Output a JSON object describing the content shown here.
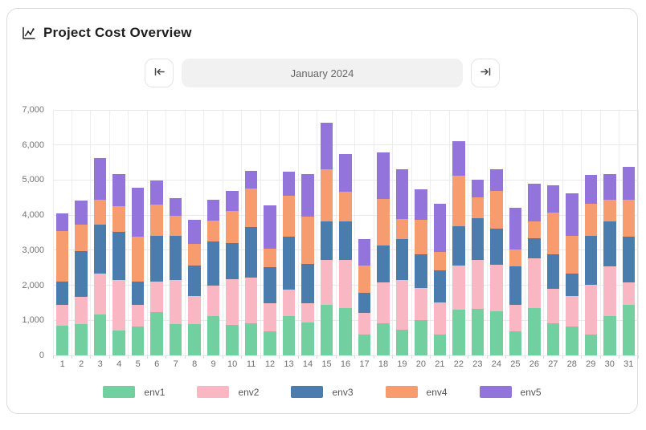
{
  "header": {
    "title": "Project Cost Overview",
    "icon": "chart-line-icon"
  },
  "nav": {
    "prev_icon": "skip-to-start-arrow-icon",
    "next_icon": "skip-to-end-arrow-icon",
    "date_label": "January 2024"
  },
  "chart_data": {
    "type": "bar",
    "stacked": true,
    "title": "Project Cost Overview",
    "xlabel": "",
    "ylabel": "",
    "grid": true,
    "legend_position": "bottom",
    "ylim": [
      0,
      7000
    ],
    "yticks": [
      {
        "value": 0,
        "label": "0"
      },
      {
        "value": 1000,
        "label": "1,000"
      },
      {
        "value": 2000,
        "label": "2,000"
      },
      {
        "value": 3000,
        "label": "3,000"
      },
      {
        "value": 4000,
        "label": "4,000"
      },
      {
        "value": 5000,
        "label": "5,000"
      },
      {
        "value": 6000,
        "label": "6,000"
      },
      {
        "value": 7000,
        "label": "7,000"
      }
    ],
    "categories": [
      "1",
      "2",
      "3",
      "4",
      "5",
      "6",
      "7",
      "8",
      "9",
      "10",
      "11",
      "12",
      "13",
      "14",
      "15",
      "16",
      "17",
      "18",
      "19",
      "20",
      "21",
      "22",
      "23",
      "24",
      "25",
      "26",
      "27",
      "28",
      "29",
      "30",
      "31"
    ],
    "series": [
      {
        "name": "env1",
        "color": "#72CFA0",
        "values": [
          850,
          900,
          1170,
          700,
          820,
          1240,
          900,
          900,
          1110,
          860,
          920,
          690,
          1120,
          940,
          1450,
          1350,
          590,
          920,
          740,
          1010,
          590,
          1300,
          1320,
          1260,
          690,
          1340,
          920,
          820,
          590,
          1110,
          1450
        ]
      },
      {
        "name": "env2",
        "color": "#F9B7C4",
        "values": [
          600,
          760,
          1170,
          1460,
          630,
          860,
          1240,
          800,
          880,
          1310,
          1300,
          800,
          760,
          550,
          1270,
          1370,
          630,
          1170,
          1400,
          920,
          920,
          1270,
          1400,
          1330,
          760,
          1430,
          970,
          880,
          1420,
          1430,
          630
        ]
      },
      {
        "name": "env3",
        "color": "#4A7CAD",
        "values": [
          650,
          1320,
          1380,
          1370,
          650,
          1320,
          1260,
          870,
          1270,
          1030,
          1450,
          1030,
          1500,
          1110,
          1090,
          1110,
          570,
          1040,
          1180,
          950,
          910,
          1110,
          1190,
          1020,
          1090,
          560,
          990,
          630,
          1400,
          1270,
          1300
        ]
      },
      {
        "name": "env4",
        "color": "#F79C6E",
        "values": [
          1450,
          750,
          730,
          720,
          1280,
          880,
          590,
          600,
          580,
          920,
          1090,
          530,
          1180,
          1370,
          1500,
          840,
          780,
          1340,
          570,
          990,
          530,
          1450,
          590,
          1070,
          470,
          500,
          1190,
          1080,
          920,
          630,
          1070
        ]
      },
      {
        "name": "env5",
        "color": "#9374DB",
        "values": [
          500,
          680,
          1180,
          920,
          1400,
          680,
          500,
          690,
          610,
          560,
          510,
          1240,
          670,
          1200,
          1320,
          1080,
          750,
          1310,
          1410,
          860,
          1370,
          990,
          510,
          620,
          1210,
          1070,
          780,
          1220,
          810,
          740,
          920
        ]
      }
    ]
  }
}
